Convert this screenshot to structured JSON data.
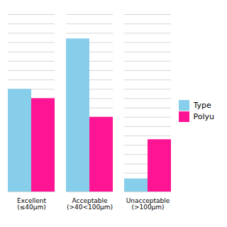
{
  "chart_data": {
    "type": "bar",
    "categories": [
      "Excellent\n(≤40μm)",
      "Acceptable\n(>40<100μm)",
      "Unacceptable\n(>100μm)"
    ],
    "series": [
      {
        "name": "Type",
        "color": "#87CEEB",
        "values": [
          55,
          82,
          7
        ]
      },
      {
        "name": "Polyu",
        "color": "#FF1493",
        "values": [
          50,
          40,
          28
        ]
      }
    ],
    "ylim": [
      0,
      95
    ],
    "yticks": [
      0,
      5,
      10,
      15,
      20,
      25,
      30,
      35,
      40,
      45,
      50,
      55,
      60,
      65,
      70,
      75,
      80,
      85,
      90,
      95
    ],
    "grid": true,
    "tick_labels": "x",
    "legend": "right"
  }
}
